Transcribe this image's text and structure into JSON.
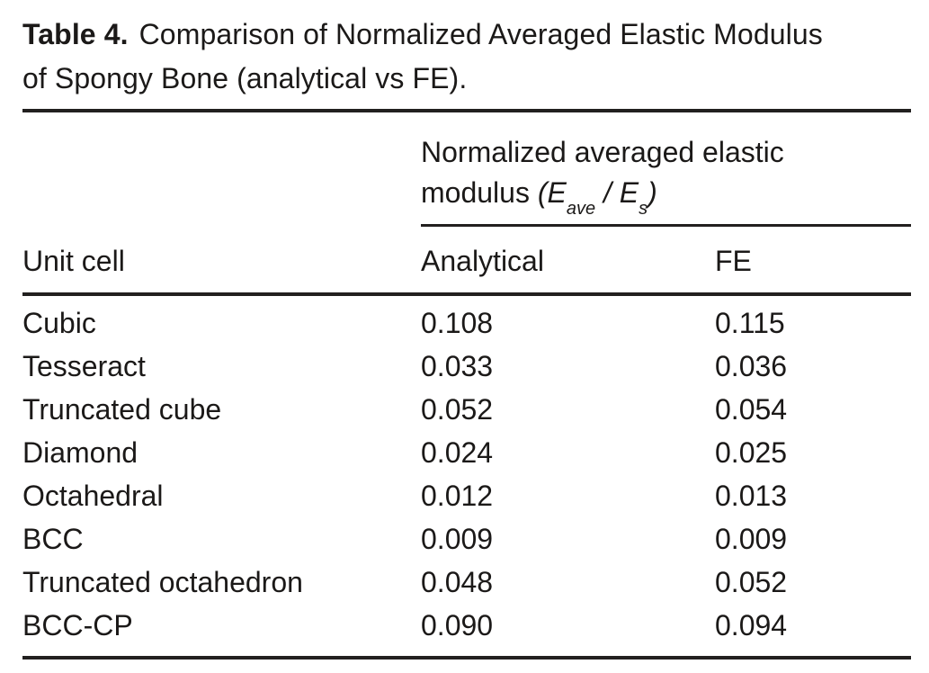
{
  "caption": {
    "label": "Table 4.",
    "line1": "Comparison of Normalized Averaged Elastic Modulus",
    "line2": "of Spongy Bone (analytical vs FE)."
  },
  "table": {
    "span_header": {
      "line1": "Normalized averaged elastic",
      "line2_text": "modulus ",
      "math_open": "(",
      "math_e1": "E",
      "math_sub1": "ave",
      "math_slash": " / ",
      "math_e2": "E",
      "math_sub2": "s",
      "math_close": ")"
    },
    "columns": {
      "unit_cell": "Unit cell",
      "analytical": "Analytical",
      "fe": "FE"
    },
    "rows": [
      {
        "unit_cell": "Cubic",
        "analytical": "0.108",
        "fe": "0.115"
      },
      {
        "unit_cell": "Tesseract",
        "analytical": "0.033",
        "fe": "0.036"
      },
      {
        "unit_cell": "Truncated cube",
        "analytical": "0.052",
        "fe": "0.054"
      },
      {
        "unit_cell": "Diamond",
        "analytical": "0.024",
        "fe": "0.025"
      },
      {
        "unit_cell": "Octahedral",
        "analytical": "0.012",
        "fe": "0.013"
      },
      {
        "unit_cell": "BCC",
        "analytical": "0.009",
        "fe": "0.009"
      },
      {
        "unit_cell": "Truncated octahedron",
        "analytical": "0.048",
        "fe": "0.052"
      },
      {
        "unit_cell": "BCC-CP",
        "analytical": "0.090",
        "fe": "0.094"
      }
    ],
    "colors": {
      "text": "#1b1918",
      "rule": "#22201f",
      "background": "#ffffff"
    }
  }
}
